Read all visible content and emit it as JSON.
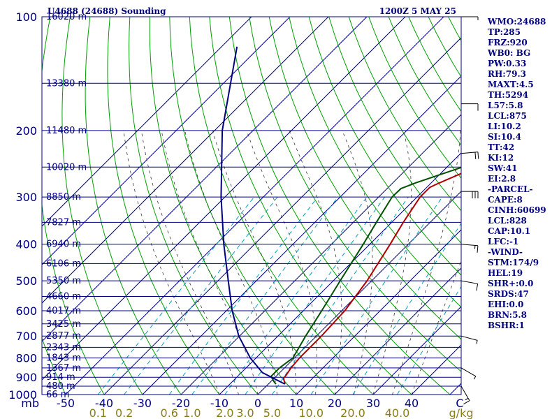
{
  "header": {
    "station": "U4688 (24688) Sounding",
    "time": "1200Z  5 MAY 25"
  },
  "stats": [
    "WMO:24688",
    "TP:285",
    "FRZ:920",
    "WB0: BG",
    "PW:0.33",
    "RH:79.3",
    "MAXT:4.5",
    "TH:5294",
    "L57:5.8",
    "LCL:875",
    "LI:10.2",
    "SI:10.4",
    "TT:42",
    "KI:12",
    "SW:41",
    "EI:2.8",
    "-PARCEL-",
    "CAPE:8",
    "CINH:60699",
    "LCL:828",
    "CAP:10.1",
    "LFC:-1",
    "-WIND-",
    "STM:174/9",
    "HEL:19",
    "SHR+:0.0",
    "SRDS:47",
    "EHI:0.0",
    "BRN:5.8",
    "BSHR:1"
  ],
  "colors": {
    "frame": "#000080",
    "isobar": "#000080",
    "isotherm": "#000080",
    "dry_adiabat": "#00a000",
    "moist_adiabat": "#3a3a3a",
    "mixing_ratio": "#00a0c0",
    "temperature": "#b00000",
    "dewpoint": "#005000",
    "parcel": "#000080",
    "wind": "#000000"
  },
  "chart_data": {
    "type": "skew-t log-p",
    "y_unit": "mb",
    "ylim": [
      1000,
      100
    ],
    "xlim": [
      -50,
      50
    ],
    "pressure_ticks": [
      100,
      200,
      300,
      400,
      500,
      600,
      700,
      800,
      900,
      1000
    ],
    "height_labels": [
      {
        "p": 100,
        "label": "16020 m"
      },
      {
        "p": 150,
        "label": "13380 m"
      },
      {
        "p": 200,
        "label": "11480 m"
      },
      {
        "p": 250,
        "label": "10020 m"
      },
      {
        "p": 300,
        "label": "8850 m"
      },
      {
        "p": 350,
        "label": "7827 m"
      },
      {
        "p": 400,
        "label": "6940 m"
      },
      {
        "p": 450,
        "label": "6106 m"
      },
      {
        "p": 500,
        "label": "5350 m"
      },
      {
        "p": 550,
        "label": "4660 m"
      },
      {
        "p": 600,
        "label": "4017 m"
      },
      {
        "p": 650,
        "label": "3425 m"
      },
      {
        "p": 700,
        "label": "2877 m"
      },
      {
        "p": 750,
        "label": "2343 m"
      },
      {
        "p": 800,
        "label": "1843 m"
      },
      {
        "p": 850,
        "label": "1367 m"
      },
      {
        "p": 900,
        "label": "914 m"
      },
      {
        "p": 950,
        "label": "480 m"
      },
      {
        "p": 1000,
        "label": "66 m"
      }
    ],
    "temperature_ticks": [
      "mb",
      "-50",
      "-40",
      "-30",
      "-20",
      "-10",
      "0",
      "10",
      "20",
      "30",
      "40",
      "C"
    ],
    "mixing_ratio_ticks": [
      "0.1",
      "0.2",
      "0.6",
      "1.0",
      "2.0",
      "3.0",
      "5.0",
      "10.0",
      "20.0",
      "40.0",
      "g/kg"
    ],
    "mixing_ratio_values": [
      0.1,
      0.2,
      0.6,
      1.0,
      2.0,
      3.0,
      5.0,
      10.0,
      20.0,
      40.0
    ],
    "isotherms": [
      -100,
      -90,
      -80,
      -70,
      -60,
      -50,
      -40,
      -30,
      -20,
      -10,
      0,
      10,
      20,
      30,
      40,
      50
    ],
    "dry_adiabats": [
      -70,
      -60,
      -50,
      -40,
      -30,
      -20,
      -10,
      0,
      10,
      20,
      30,
      40,
      50,
      60,
      70,
      80,
      90,
      100,
      110,
      120,
      130,
      140,
      150,
      160,
      170,
      180
    ],
    "moist_adiabats": [
      -10,
      -5,
      0,
      5,
      10,
      15,
      20,
      25,
      30,
      35,
      40
    ],
    "series": [
      {
        "key": "temperature",
        "points": [
          [
            938,
            4.3
          ],
          [
            925,
            3.6
          ],
          [
            905,
            2.4
          ],
          [
            895,
            2.4
          ],
          [
            850,
            1.7
          ],
          [
            800,
            1.3
          ],
          [
            700,
            1.3
          ],
          [
            600,
            0.8
          ],
          [
            500,
            -1.2
          ],
          [
            400,
            -4.7
          ],
          [
            350,
            -7.0
          ],
          [
            300,
            -9.2
          ],
          [
            283,
            -9.2
          ],
          [
            277,
            -8.2
          ],
          [
            250,
            -2.5
          ],
          [
            200,
            7.0
          ],
          [
            150,
            13.0
          ],
          [
            100,
            16.0
          ]
        ]
      },
      {
        "key": "dewpoint",
        "points": [
          [
            938,
            2.0
          ],
          [
            925,
            0.9
          ],
          [
            895,
            -1.3
          ],
          [
            850,
            -1.3
          ],
          [
            800,
            -0.4
          ],
          [
            700,
            -2.8
          ],
          [
            600,
            -5.2
          ],
          [
            500,
            -8.2
          ],
          [
            400,
            -11.7
          ],
          [
            350,
            -14.0
          ],
          [
            300,
            -16.5
          ],
          [
            285,
            -16.4
          ],
          [
            275,
            -14.0
          ],
          [
            250,
            -6.0
          ],
          [
            200,
            3.0
          ],
          [
            150,
            6.0
          ],
          [
            100,
            10.5
          ]
        ]
      },
      {
        "key": "parcel",
        "points": [
          [
            938,
            4.3
          ],
          [
            875,
            -4.5
          ],
          [
            800,
            -11.5
          ],
          [
            700,
            -20.2
          ],
          [
            600,
            -28.5
          ],
          [
            500,
            -37.3
          ],
          [
            400,
            -48.0
          ],
          [
            300,
            -61.0
          ],
          [
            200,
            -78.0
          ],
          [
            120,
            -96.0
          ]
        ]
      }
    ],
    "wind_barbs": [
      {
        "p": 100,
        "dir": 270,
        "kt": 5
      },
      {
        "p": 170,
        "dir": 270,
        "kt": 10
      },
      {
        "p": 230,
        "dir": 265,
        "kt": 20
      },
      {
        "p": 290,
        "dir": 270,
        "kt": 30
      },
      {
        "p": 400,
        "dir": 275,
        "kt": 15
      },
      {
        "p": 500,
        "dir": 280,
        "kt": 10
      },
      {
        "p": 700,
        "dir": 285,
        "kt": 5
      },
      {
        "p": 850,
        "dir": 300,
        "kt": 5
      },
      {
        "p": 950,
        "dir": 330,
        "kt": 15
      }
    ]
  }
}
